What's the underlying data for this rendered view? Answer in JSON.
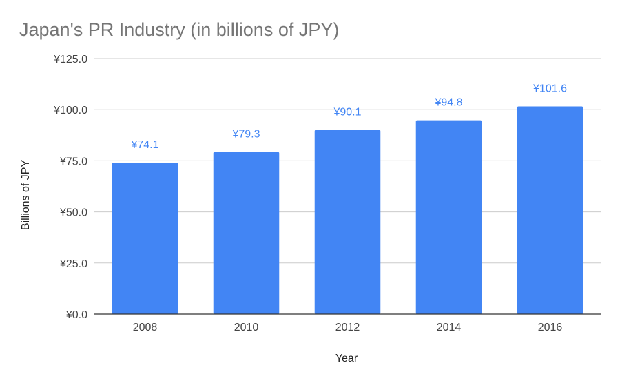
{
  "chart_data": {
    "type": "bar",
    "title": "Japan's PR Industry (in billions of JPY)",
    "xlabel": "Year",
    "ylabel": "Billions of JPY",
    "categories": [
      "2008",
      "2010",
      "2012",
      "2014",
      "2016"
    ],
    "values": [
      74.1,
      79.3,
      90.1,
      94.8,
      101.6
    ],
    "data_labels": [
      "¥74.1",
      "¥79.3",
      "¥90.1",
      "¥94.8",
      "¥101.6"
    ],
    "ylim": [
      0,
      125
    ],
    "yticks": [
      0,
      25,
      50,
      75,
      100,
      125
    ],
    "ytick_labels": [
      "¥0.0",
      "¥25.0",
      "¥50.0",
      "¥75.0",
      "¥100.0",
      "¥125.0"
    ],
    "grid": true,
    "legend": "none",
    "colors": {
      "bar": "#4285f4",
      "label": "#4285f4",
      "grid": "#cccccc",
      "title": "#757575"
    }
  }
}
